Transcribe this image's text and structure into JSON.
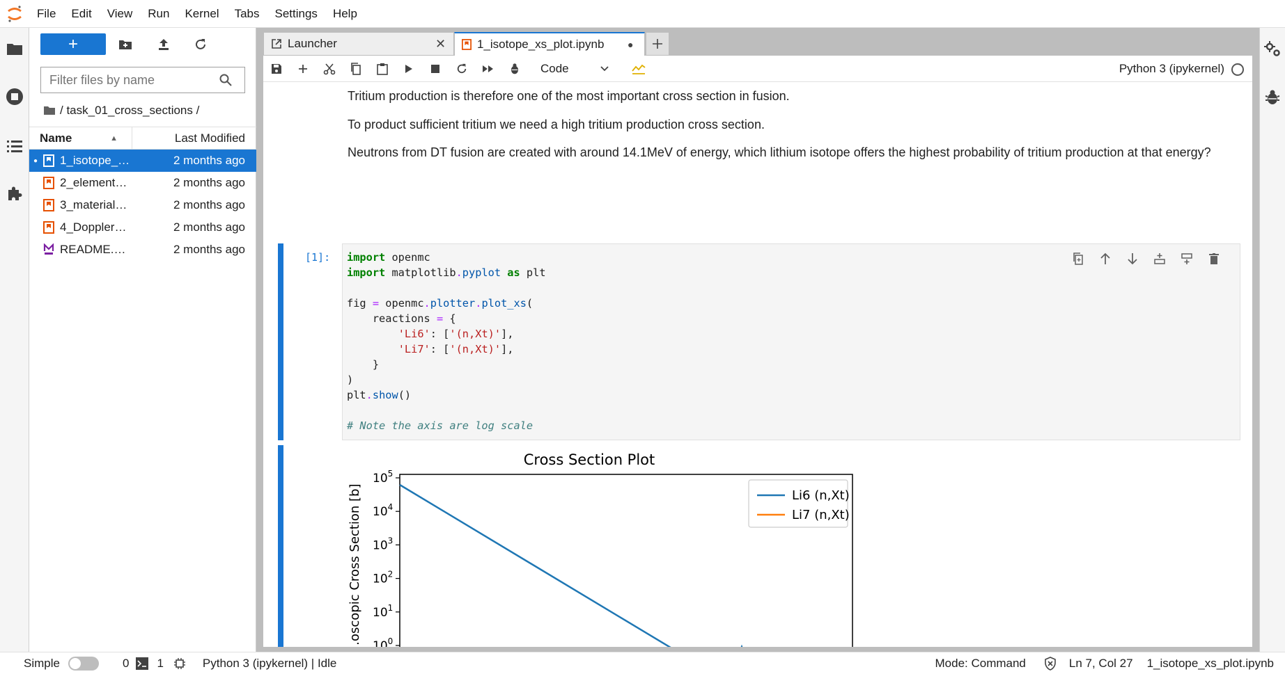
{
  "menubar": {
    "items": [
      "File",
      "Edit",
      "View",
      "Run",
      "Kernel",
      "Tabs",
      "Settings",
      "Help"
    ]
  },
  "filebrowser": {
    "filter_placeholder": "Filter files by name",
    "breadcrumb_path": "/ task_01_cross_sections /",
    "col_name": "Name",
    "col_modified": "Last Modified",
    "files": [
      {
        "name": "1_isotope_…",
        "modified": "2 months ago",
        "selected": true
      },
      {
        "name": "2_element…",
        "modified": "2 months ago"
      },
      {
        "name": "3_material…",
        "modified": "2 months ago"
      },
      {
        "name": "4_Doppler…",
        "modified": "2 months ago"
      },
      {
        "name": "README.…",
        "modified": "2 months ago"
      }
    ]
  },
  "tabs": [
    {
      "label": "Launcher"
    },
    {
      "label": "1_isotope_xs_plot.ipynb"
    }
  ],
  "notebook": {
    "cell_type": "Code",
    "kernel": "Python 3 (ipykernel)",
    "markdown": [
      "Tritium production is therefore one of the most important cross section in fusion.",
      "To product sufficient tritium we need a high tritium production cross section.",
      "Neutrons from DT fusion are created with around 14.1MeV of energy, which lithium isotope offers the highest probability of tritium production at that energy?"
    ],
    "prompt": "[1]:",
    "code_comment": "# Note the axis are log scale"
  },
  "chart_data": {
    "type": "line",
    "title": "Cross Section Plot",
    "ylabel": "…oscopic Cross Section [b]",
    "yscale": "log",
    "y_tick_labels": [
      "10^5",
      "10^4",
      "10^3",
      "10^2",
      "10^1",
      "10^0"
    ],
    "legend_position": "top-right",
    "series": [
      {
        "name": "Li6 (n,Xt)",
        "color": "#1f77b4"
      },
      {
        "name": "Li7 (n,Xt)",
        "color": "#ff7f0e"
      }
    ]
  },
  "statusbar": {
    "mode_label": "Simple",
    "terminals": "0",
    "kernels": "1",
    "kernel_status": "Python 3 (ipykernel) | Idle",
    "mode": "Mode: Command",
    "position": "Ln 7, Col 27",
    "filename": "1_isotope_xs_plot.ipynb"
  },
  "colors": {
    "accent": "#1976d2",
    "jupyter_orange": "#f37726",
    "notebook_icon": "#e65100",
    "markdown_icon": "#7b1fa2"
  }
}
